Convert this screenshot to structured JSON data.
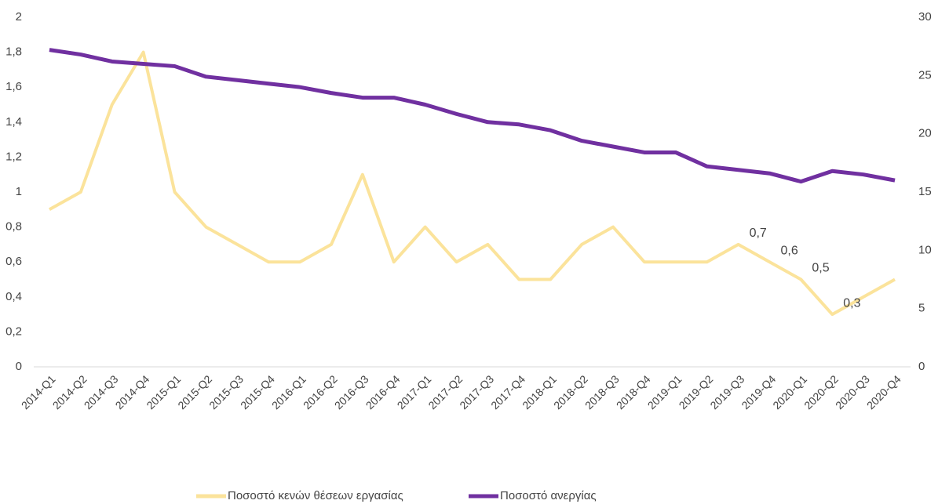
{
  "chart_data": {
    "type": "line",
    "categories": [
      "2014-Q1",
      "2014-Q2",
      "2014-Q3",
      "2014-Q4",
      "2015-Q1",
      "2015-Q2",
      "2015-Q3",
      "2015-Q4",
      "2016-Q1",
      "2016-Q2",
      "2016-Q3",
      "2016-Q4",
      "2017-Q1",
      "2017-Q2",
      "2017-Q3",
      "2017-Q4",
      "2018-Q1",
      "2018-Q2",
      "2018-Q3",
      "2018-Q4",
      "2019-Q1",
      "2019-Q2",
      "2019-Q3",
      "2019-Q4",
      "2020-Q1",
      "2020-Q2",
      "2020-Q3",
      "2020-Q4"
    ],
    "series": [
      {
        "name": "Ποσοστό κενών θέσεων εργασίας",
        "color": "#fbe39b",
        "axis": "y",
        "values": [
          0.9,
          1.0,
          1.5,
          1.8,
          1.0,
          0.8,
          0.7,
          0.6,
          0.6,
          0.7,
          1.1,
          0.6,
          0.8,
          0.6,
          0.7,
          0.5,
          0.5,
          0.7,
          0.8,
          0.6,
          0.6,
          0.6,
          0.7,
          0.6,
          0.5,
          0.3,
          0.4,
          0.5
        ],
        "value_labels": [
          null,
          null,
          null,
          null,
          null,
          null,
          null,
          null,
          null,
          null,
          null,
          null,
          null,
          null,
          null,
          null,
          null,
          null,
          null,
          null,
          null,
          null,
          "0,7",
          "0,6",
          "0,5",
          "0,3",
          null,
          null
        ]
      },
      {
        "name": "Ποσοστό ανεργίας",
        "color": "#7030a0",
        "axis": "y2",
        "values": [
          27.2,
          26.8,
          26.2,
          26.0,
          25.8,
          24.9,
          24.6,
          24.3,
          24.0,
          23.5,
          23.1,
          23.1,
          22.5,
          21.7,
          21.0,
          20.8,
          20.3,
          19.4,
          18.9,
          18.4,
          18.4,
          17.2,
          16.9,
          16.6,
          15.9,
          16.8,
          16.5,
          16.0
        ]
      }
    ],
    "ylim": [
      0,
      2
    ],
    "yticks": [
      0,
      {
        "value": 0.2,
        "label": "0,2"
      },
      {
        "value": 0.4,
        "label": "0,4"
      },
      {
        "value": 0.6,
        "label": "0,6"
      },
      {
        "value": 0.8,
        "label": "0,8"
      },
      1,
      {
        "value": 1.2,
        "label": "1,2"
      },
      {
        "value": 1.4,
        "label": "1,4"
      },
      {
        "value": 1.6,
        "label": "1,6"
      },
      {
        "value": 1.8,
        "label": "1,8"
      },
      2
    ],
    "y2lim": [
      0,
      30
    ],
    "y2ticks": [
      0,
      5,
      10,
      15,
      20,
      25,
      30
    ],
    "grid": false,
    "legend": "bottom"
  }
}
